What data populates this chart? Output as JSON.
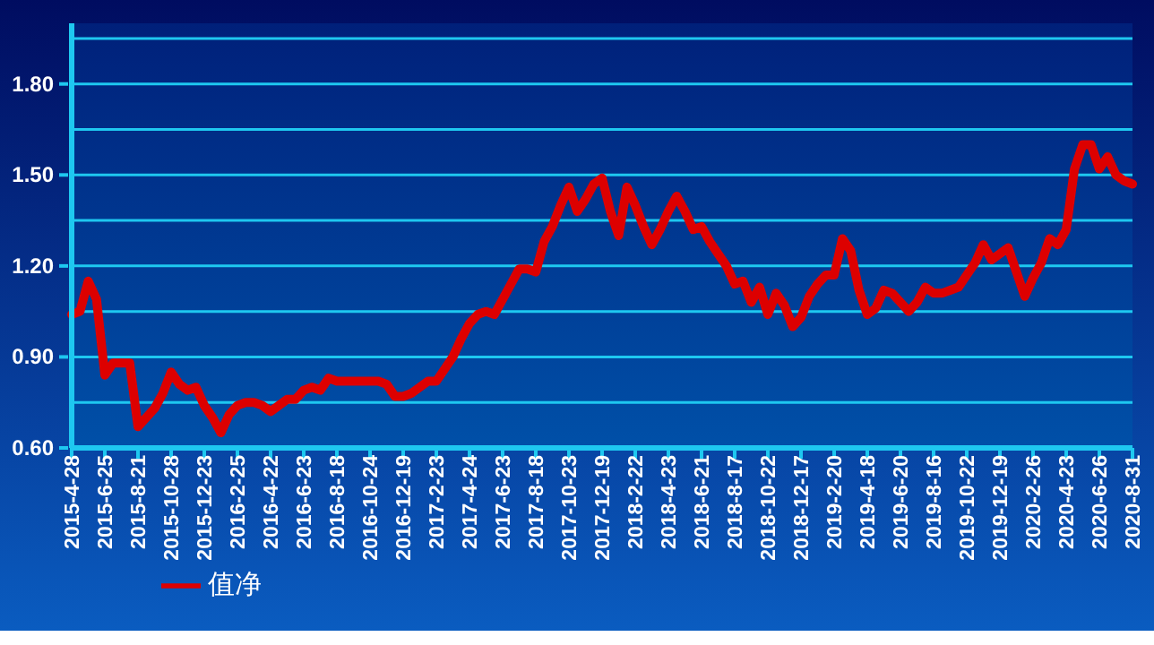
{
  "chart_data": {
    "type": "line",
    "categories": [
      "2015-4-28",
      null,
      null,
      null,
      "2015-6-25",
      null,
      null,
      null,
      "2015-8-21",
      null,
      null,
      null,
      "2015-10-28",
      null,
      null,
      null,
      "2015-12-23",
      null,
      null,
      null,
      "2016-2-25",
      null,
      null,
      null,
      "2016-4-22",
      null,
      null,
      null,
      "2016-6-23",
      null,
      null,
      null,
      "2016-8-18",
      null,
      null,
      null,
      "2016-10-24",
      null,
      null,
      null,
      "2016-12-19",
      null,
      null,
      null,
      "2017-2-23",
      null,
      null,
      null,
      "2017-4-24",
      null,
      null,
      null,
      "2017-6-23",
      null,
      null,
      null,
      "2017-8-18",
      null,
      null,
      null,
      "2017-10-23",
      null,
      null,
      null,
      "2017-12-19",
      null,
      null,
      null,
      "2018-2-22",
      null,
      null,
      null,
      "2018-4-23",
      null,
      null,
      null,
      "2018-6-21",
      null,
      null,
      null,
      "2018-8-17",
      null,
      null,
      null,
      "2018-10-22",
      null,
      null,
      null,
      "2018-12-17",
      null,
      null,
      null,
      "2019-2-20",
      null,
      null,
      null,
      "2019-4-18",
      null,
      null,
      null,
      "2019-6-20",
      null,
      null,
      null,
      "2019-8-16",
      null,
      null,
      null,
      "2019-10-22",
      null,
      null,
      null,
      "2019-12-19",
      null,
      null,
      null,
      "2020-2-26",
      null,
      null,
      null,
      "2020-4-23",
      null,
      null,
      null,
      "2020-6-26",
      null,
      null,
      null,
      "2020-8-31"
    ],
    "series": [
      {
        "name": "值净",
        "color": "#dd0000",
        "values": [
          1.04,
          1.05,
          1.15,
          1.09,
          0.84,
          0.88,
          0.88,
          0.88,
          0.67,
          0.7,
          0.73,
          0.78,
          0.85,
          0.81,
          0.79,
          0.8,
          0.74,
          0.7,
          0.65,
          0.71,
          0.74,
          0.75,
          0.75,
          0.74,
          0.72,
          0.74,
          0.76,
          0.76,
          0.79,
          0.8,
          0.79,
          0.83,
          0.82,
          0.82,
          0.82,
          0.82,
          0.82,
          0.82,
          0.81,
          0.77,
          0.77,
          0.78,
          0.8,
          0.82,
          0.82,
          0.86,
          0.9,
          0.96,
          1.01,
          1.04,
          1.05,
          1.04,
          1.09,
          1.14,
          1.19,
          1.19,
          1.18,
          1.28,
          1.33,
          1.4,
          1.46,
          1.38,
          1.42,
          1.47,
          1.49,
          1.38,
          1.3,
          1.46,
          1.4,
          1.33,
          1.27,
          1.32,
          1.38,
          1.43,
          1.38,
          1.32,
          1.33,
          1.28,
          1.24,
          1.2,
          1.14,
          1.15,
          1.08,
          1.13,
          1.04,
          1.11,
          1.07,
          1.0,
          1.03,
          1.1,
          1.14,
          1.17,
          1.17,
          1.29,
          1.25,
          1.12,
          1.04,
          1.06,
          1.12,
          1.11,
          1.08,
          1.05,
          1.08,
          1.13,
          1.11,
          1.11,
          1.12,
          1.13,
          1.17,
          1.21,
          1.27,
          1.22,
          1.24,
          1.26,
          1.18,
          1.1,
          1.16,
          1.21,
          1.29,
          1.27,
          1.32,
          1.52,
          1.6,
          1.6,
          1.52,
          1.56,
          1.5,
          1.48,
          1.47
        ]
      }
    ],
    "ylim": [
      0.6,
      2.0
    ],
    "yticks": [
      {
        "value": 0.6,
        "label": "0.60"
      },
      {
        "value": 0.75,
        "label": null
      },
      {
        "value": 0.9,
        "label": "0.90"
      },
      {
        "value": 1.05,
        "label": null
      },
      {
        "value": 1.2,
        "label": "1.20"
      },
      {
        "value": 1.35,
        "label": null
      },
      {
        "value": 1.5,
        "label": "1.50"
      },
      {
        "value": 1.65,
        "label": null
      },
      {
        "value": 1.8,
        "label": "1.80"
      },
      {
        "value": 1.95,
        "label": null
      }
    ],
    "grid": "y",
    "legend": "bottom left",
    "marker": "none",
    "line_style": "solid"
  }
}
